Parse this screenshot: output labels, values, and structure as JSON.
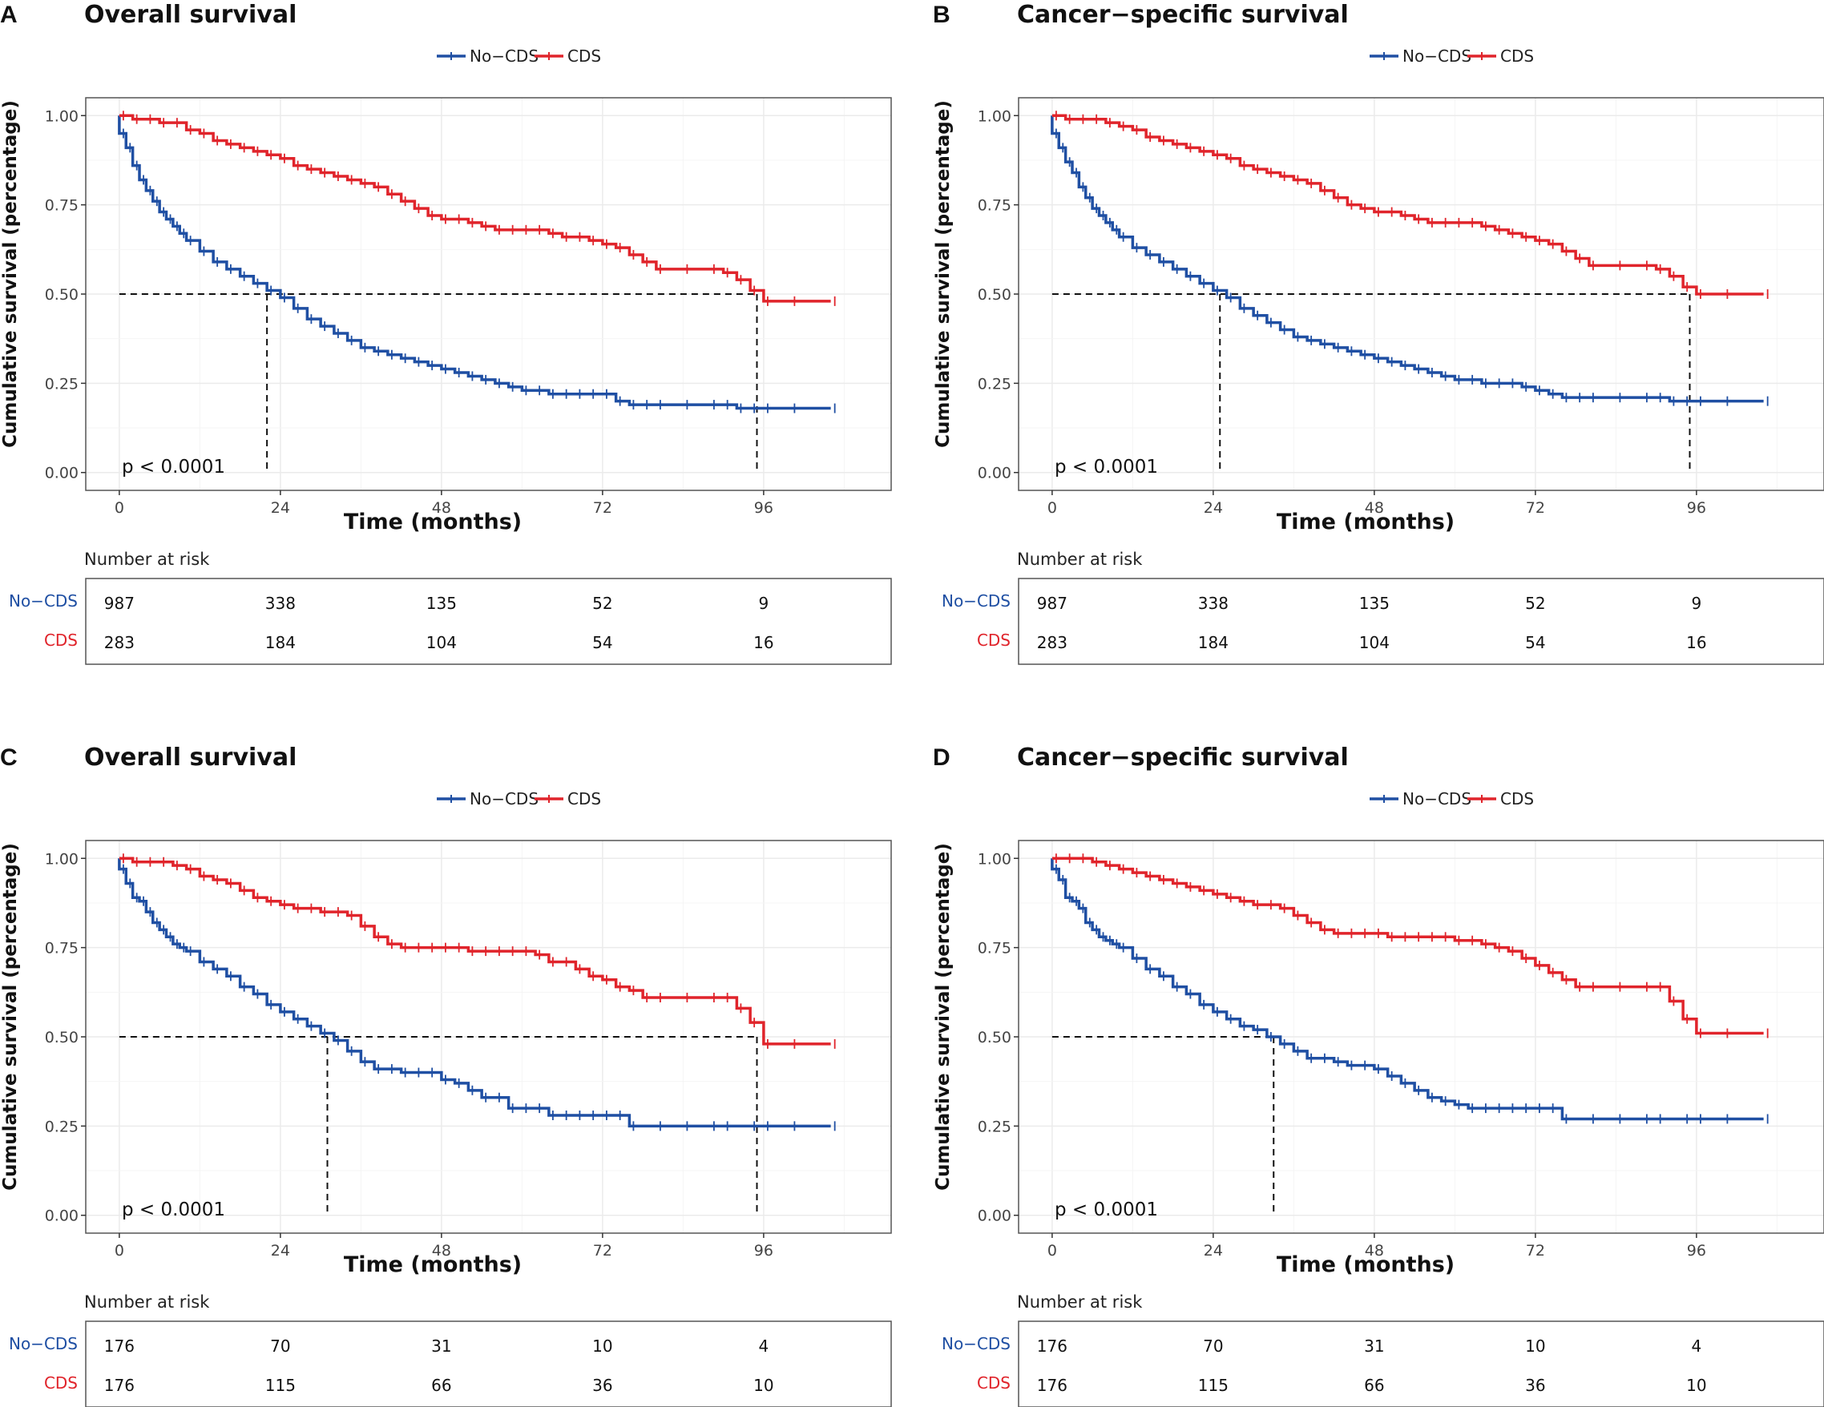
{
  "colors": {
    "no_cds": "#1f4fa3",
    "cds": "#e0242b",
    "grid": "#ebebeb",
    "frame": "#555555"
  },
  "chart_data": [
    {
      "type": "line",
      "panel": "A",
      "title": "Overall survival",
      "xlabel": "Time (months)",
      "ylabel": "Cumulative survival (percentage)",
      "xlim": [
        -5,
        115
      ],
      "ylim": [
        -0.05,
        1.05
      ],
      "x_ticks": [
        0,
        24,
        48,
        72,
        96
      ],
      "y_ticks": [
        "0.00",
        "0.25",
        "0.50",
        "0.75",
        "1.00"
      ],
      "legend": [
        "No−CDS",
        "CDS"
      ],
      "pvalue": "p < 0.0001",
      "median_survival": {
        "No−CDS": 22,
        "CDS": 95
      },
      "series": [
        {
          "name": "No−CDS",
          "color_key": "no_cds",
          "x": [
            0,
            1,
            2,
            3,
            4,
            5,
            6,
            7,
            8,
            9,
            10,
            12,
            14,
            16,
            18,
            20,
            22,
            24,
            26,
            28,
            30,
            32,
            34,
            36,
            38,
            40,
            42,
            44,
            46,
            48,
            50,
            52,
            54,
            56,
            58,
            60,
            62,
            64,
            66,
            68,
            70,
            72,
            74,
            76,
            78,
            80,
            84,
            88,
            90,
            92,
            94,
            96,
            100,
            106
          ],
          "y": [
            0.95,
            0.91,
            0.86,
            0.82,
            0.79,
            0.76,
            0.73,
            0.71,
            0.69,
            0.67,
            0.65,
            0.62,
            0.59,
            0.57,
            0.55,
            0.53,
            0.51,
            0.49,
            0.46,
            0.43,
            0.41,
            0.39,
            0.37,
            0.35,
            0.34,
            0.33,
            0.32,
            0.31,
            0.3,
            0.29,
            0.28,
            0.27,
            0.26,
            0.25,
            0.24,
            0.23,
            0.23,
            0.22,
            0.22,
            0.22,
            0.22,
            0.22,
            0.2,
            0.19,
            0.19,
            0.19,
            0.19,
            0.19,
            0.19,
            0.18,
            0.18,
            0.18,
            0.18,
            0.18
          ]
        },
        {
          "name": "CDS",
          "color_key": "cds",
          "x": [
            0,
            2,
            4,
            6,
            8,
            10,
            12,
            14,
            16,
            18,
            20,
            22,
            24,
            26,
            28,
            30,
            32,
            34,
            36,
            38,
            40,
            42,
            44,
            46,
            48,
            50,
            52,
            54,
            56,
            58,
            60,
            62,
            64,
            66,
            68,
            70,
            72,
            74,
            76,
            78,
            80,
            84,
            88,
            90,
            92,
            94,
            96,
            100,
            106
          ],
          "y": [
            1.0,
            0.99,
            0.99,
            0.98,
            0.98,
            0.96,
            0.95,
            0.93,
            0.92,
            0.91,
            0.9,
            0.89,
            0.88,
            0.86,
            0.85,
            0.84,
            0.83,
            0.82,
            0.81,
            0.8,
            0.78,
            0.76,
            0.74,
            0.72,
            0.71,
            0.71,
            0.7,
            0.69,
            0.68,
            0.68,
            0.68,
            0.68,
            0.67,
            0.66,
            0.66,
            0.65,
            0.64,
            0.63,
            0.61,
            0.59,
            0.57,
            0.57,
            0.57,
            0.56,
            0.54,
            0.51,
            0.48,
            0.48,
            0.48
          ]
        }
      ],
      "risk_table": {
        "title": "Number at risk",
        "times": [
          0,
          24,
          48,
          72,
          96
        ],
        "rows": [
          {
            "name": "No−CDS",
            "values": [
              "987",
              "338",
              "135",
              "52",
              "9"
            ]
          },
          {
            "name": "CDS",
            "values": [
              "283",
              "184",
              "104",
              "54",
              "16"
            ]
          }
        ]
      }
    },
    {
      "type": "line",
      "panel": "B",
      "title": "Cancer−specific survival",
      "xlabel": "Time (months)",
      "ylabel": "Cumulative survival (percentage)",
      "xlim": [
        -5,
        115
      ],
      "ylim": [
        -0.05,
        1.05
      ],
      "x_ticks": [
        0,
        24,
        48,
        72,
        96
      ],
      "y_ticks": [
        "0.00",
        "0.25",
        "0.50",
        "0.75",
        "1.00"
      ],
      "legend": [
        "No−CDS",
        "CDS"
      ],
      "pvalue": "p < 0.0001",
      "median_survival": {
        "No−CDS": 25,
        "CDS": 95
      },
      "series": [
        {
          "name": "No−CDS",
          "color_key": "no_cds",
          "x": [
            0,
            1,
            2,
            3,
            4,
            5,
            6,
            7,
            8,
            9,
            10,
            12,
            14,
            16,
            18,
            20,
            22,
            24,
            26,
            28,
            30,
            32,
            34,
            36,
            38,
            40,
            42,
            44,
            46,
            48,
            50,
            52,
            54,
            56,
            58,
            60,
            62,
            64,
            66,
            68,
            70,
            72,
            74,
            76,
            78,
            80,
            84,
            88,
            90,
            92,
            94,
            96,
            100,
            106
          ],
          "y": [
            0.95,
            0.91,
            0.87,
            0.84,
            0.8,
            0.77,
            0.74,
            0.72,
            0.7,
            0.68,
            0.66,
            0.63,
            0.61,
            0.59,
            0.57,
            0.55,
            0.53,
            0.51,
            0.49,
            0.46,
            0.44,
            0.42,
            0.4,
            0.38,
            0.37,
            0.36,
            0.35,
            0.34,
            0.33,
            0.32,
            0.31,
            0.3,
            0.29,
            0.28,
            0.27,
            0.26,
            0.26,
            0.25,
            0.25,
            0.25,
            0.24,
            0.23,
            0.22,
            0.21,
            0.21,
            0.21,
            0.21,
            0.21,
            0.21,
            0.2,
            0.2,
            0.2,
            0.2,
            0.2
          ]
        },
        {
          "name": "CDS",
          "color_key": "cds",
          "x": [
            0,
            2,
            4,
            6,
            8,
            10,
            12,
            14,
            16,
            18,
            20,
            22,
            24,
            26,
            28,
            30,
            32,
            34,
            36,
            38,
            40,
            42,
            44,
            46,
            48,
            50,
            52,
            54,
            56,
            58,
            60,
            62,
            64,
            66,
            68,
            70,
            72,
            74,
            76,
            78,
            80,
            84,
            88,
            90,
            92,
            94,
            96,
            100,
            106
          ],
          "y": [
            1.0,
            0.99,
            0.99,
            0.99,
            0.98,
            0.97,
            0.96,
            0.94,
            0.93,
            0.92,
            0.91,
            0.9,
            0.89,
            0.88,
            0.86,
            0.85,
            0.84,
            0.83,
            0.82,
            0.81,
            0.79,
            0.77,
            0.75,
            0.74,
            0.73,
            0.73,
            0.72,
            0.71,
            0.7,
            0.7,
            0.7,
            0.7,
            0.69,
            0.68,
            0.67,
            0.66,
            0.65,
            0.64,
            0.62,
            0.6,
            0.58,
            0.58,
            0.58,
            0.57,
            0.55,
            0.52,
            0.5,
            0.5,
            0.5
          ]
        }
      ],
      "risk_table": {
        "title": "Number at risk",
        "times": [
          0,
          24,
          48,
          72,
          96
        ],
        "rows": [
          {
            "name": "No−CDS",
            "values": [
              "987",
              "338",
              "135",
              "52",
              "9"
            ]
          },
          {
            "name": "CDS",
            "values": [
              "283",
              "184",
              "104",
              "54",
              "16"
            ]
          }
        ]
      }
    },
    {
      "type": "line",
      "panel": "C",
      "title": "Overall survival",
      "xlabel": "Time (months)",
      "ylabel": "Cumulative survival (percentage)",
      "xlim": [
        -5,
        115
      ],
      "ylim": [
        -0.05,
        1.05
      ],
      "x_ticks": [
        0,
        24,
        48,
        72,
        96
      ],
      "y_ticks": [
        "0.00",
        "0.25",
        "0.50",
        "0.75",
        "1.00"
      ],
      "legend": [
        "No−CDS",
        "CDS"
      ],
      "pvalue": "p < 0.0001",
      "median_survival": {
        "No−CDS": 31,
        "CDS": 95
      },
      "series": [
        {
          "name": "No−CDS",
          "color_key": "no_cds",
          "x": [
            0,
            1,
            2,
            3,
            4,
            5,
            6,
            7,
            8,
            9,
            10,
            12,
            14,
            16,
            18,
            20,
            22,
            24,
            26,
            28,
            30,
            32,
            34,
            36,
            38,
            40,
            42,
            44,
            46,
            48,
            50,
            52,
            54,
            56,
            58,
            60,
            62,
            64,
            66,
            68,
            70,
            72,
            74,
            76,
            80,
            84,
            88,
            90,
            94,
            96,
            100,
            106
          ],
          "y": [
            0.97,
            0.93,
            0.89,
            0.88,
            0.85,
            0.82,
            0.8,
            0.78,
            0.76,
            0.75,
            0.74,
            0.71,
            0.69,
            0.67,
            0.64,
            0.62,
            0.59,
            0.57,
            0.55,
            0.53,
            0.51,
            0.49,
            0.46,
            0.43,
            0.41,
            0.41,
            0.4,
            0.4,
            0.4,
            0.38,
            0.37,
            0.35,
            0.33,
            0.33,
            0.3,
            0.3,
            0.3,
            0.28,
            0.28,
            0.28,
            0.28,
            0.28,
            0.28,
            0.25,
            0.25,
            0.25,
            0.25,
            0.25,
            0.25,
            0.25,
            0.25,
            0.25
          ]
        },
        {
          "name": "CDS",
          "color_key": "cds",
          "x": [
            0,
            2,
            4,
            6,
            8,
            10,
            12,
            14,
            16,
            18,
            20,
            22,
            24,
            26,
            28,
            30,
            32,
            34,
            36,
            38,
            40,
            42,
            44,
            46,
            48,
            50,
            52,
            54,
            56,
            58,
            60,
            62,
            64,
            66,
            68,
            70,
            72,
            74,
            76,
            78,
            80,
            84,
            88,
            90,
            92,
            94,
            96,
            100,
            106
          ],
          "y": [
            1.0,
            0.99,
            0.99,
            0.99,
            0.98,
            0.97,
            0.95,
            0.94,
            0.93,
            0.91,
            0.89,
            0.88,
            0.87,
            0.86,
            0.86,
            0.85,
            0.85,
            0.84,
            0.81,
            0.78,
            0.76,
            0.75,
            0.75,
            0.75,
            0.75,
            0.75,
            0.74,
            0.74,
            0.74,
            0.74,
            0.74,
            0.73,
            0.71,
            0.71,
            0.69,
            0.67,
            0.66,
            0.64,
            0.63,
            0.61,
            0.61,
            0.61,
            0.61,
            0.61,
            0.58,
            0.54,
            0.48,
            0.48,
            0.48
          ]
        }
      ],
      "risk_table": {
        "title": "Number at risk",
        "times": [
          0,
          24,
          48,
          72,
          96
        ],
        "rows": [
          {
            "name": "No−CDS",
            "values": [
              "176",
              "70",
              "31",
              "10",
              "4"
            ]
          },
          {
            "name": "CDS",
            "values": [
              "176",
              "115",
              "66",
              "36",
              "10"
            ]
          }
        ]
      }
    },
    {
      "type": "line",
      "panel": "D",
      "title": "Cancer−specific survival",
      "xlabel": "Time (months)",
      "ylabel": "Cumulative survival (percentage)",
      "xlim": [
        -5,
        115
      ],
      "ylim": [
        -0.05,
        1.05
      ],
      "x_ticks": [
        0,
        24,
        48,
        72,
        96
      ],
      "y_ticks": [
        "0.00",
        "0.25",
        "0.50",
        "0.75",
        "1.00"
      ],
      "legend": [
        "No−CDS",
        "CDS"
      ],
      "pvalue": "p < 0.0001",
      "median_survival": {
        "No−CDS": 33,
        "CDS": null
      },
      "series": [
        {
          "name": "No−CDS",
          "color_key": "no_cds",
          "x": [
            0,
            1,
            2,
            3,
            4,
            5,
            6,
            7,
            8,
            9,
            10,
            12,
            14,
            16,
            18,
            20,
            22,
            24,
            26,
            28,
            30,
            32,
            34,
            36,
            38,
            40,
            42,
            44,
            46,
            48,
            50,
            52,
            54,
            56,
            58,
            60,
            62,
            64,
            66,
            68,
            70,
            72,
            74,
            76,
            80,
            84,
            88,
            90,
            94,
            96,
            100,
            106
          ],
          "y": [
            0.97,
            0.94,
            0.89,
            0.88,
            0.86,
            0.82,
            0.8,
            0.78,
            0.77,
            0.76,
            0.75,
            0.72,
            0.69,
            0.67,
            0.64,
            0.62,
            0.59,
            0.57,
            0.55,
            0.53,
            0.52,
            0.5,
            0.48,
            0.46,
            0.44,
            0.44,
            0.43,
            0.42,
            0.42,
            0.41,
            0.39,
            0.37,
            0.35,
            0.33,
            0.32,
            0.31,
            0.3,
            0.3,
            0.3,
            0.3,
            0.3,
            0.3,
            0.3,
            0.27,
            0.27,
            0.27,
            0.27,
            0.27,
            0.27,
            0.27,
            0.27,
            0.27
          ]
        },
        {
          "name": "CDS",
          "color_key": "cds",
          "x": [
            0,
            2,
            4,
            6,
            8,
            10,
            12,
            14,
            16,
            18,
            20,
            22,
            24,
            26,
            28,
            30,
            32,
            34,
            36,
            38,
            40,
            42,
            44,
            46,
            48,
            50,
            52,
            54,
            56,
            58,
            60,
            62,
            64,
            66,
            68,
            70,
            72,
            74,
            76,
            78,
            80,
            84,
            88,
            90,
            92,
            94,
            96,
            100,
            106
          ],
          "y": [
            1.0,
            1.0,
            1.0,
            0.99,
            0.98,
            0.97,
            0.96,
            0.95,
            0.94,
            0.93,
            0.92,
            0.91,
            0.9,
            0.89,
            0.88,
            0.87,
            0.87,
            0.86,
            0.84,
            0.82,
            0.8,
            0.79,
            0.79,
            0.79,
            0.79,
            0.78,
            0.78,
            0.78,
            0.78,
            0.78,
            0.77,
            0.77,
            0.76,
            0.75,
            0.74,
            0.72,
            0.7,
            0.68,
            0.66,
            0.64,
            0.64,
            0.64,
            0.64,
            0.64,
            0.6,
            0.55,
            0.51,
            0.51,
            0.51
          ]
        }
      ],
      "risk_table": {
        "title": "Number at risk",
        "times": [
          0,
          24,
          48,
          72,
          96
        ],
        "rows": [
          {
            "name": "No−CDS",
            "values": [
              "176",
              "70",
              "31",
              "10",
              "4"
            ]
          },
          {
            "name": "CDS",
            "values": [
              "176",
              "115",
              "66",
              "36",
              "10"
            ]
          }
        ]
      }
    }
  ]
}
